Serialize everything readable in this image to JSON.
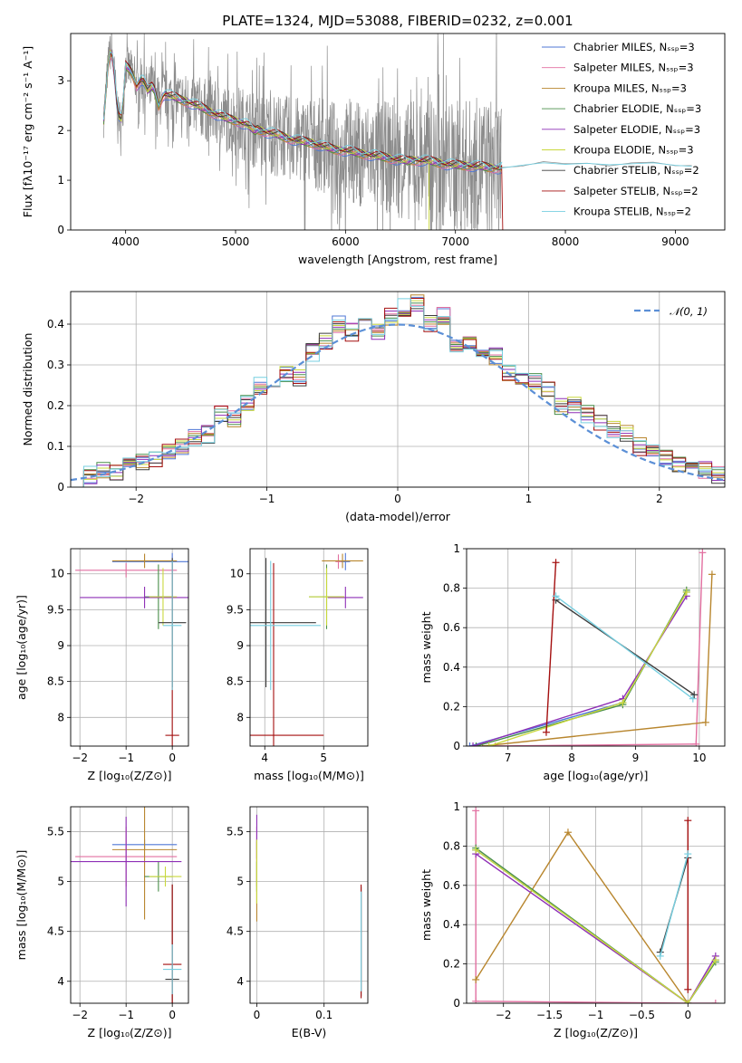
{
  "colors": {
    "series": [
      "#4f77d6",
      "#e26fa0",
      "#b8862e",
      "#4a8f4a",
      "#8e2fb6",
      "#c9d83c",
      "#3c3c3c",
      "#a40f0f",
      "#77cfe0"
    ],
    "data": "#8c8c8c",
    "gauss": "#5b8fd6",
    "grid": "#b0b0b0"
  },
  "chart_data": [
    {
      "id": "spectrum",
      "type": "line",
      "title": "PLATE=1324, MJD=53088, FIBERID=0232, z=0.001",
      "xlabel": "wavelength [Angstrom, rest frame]",
      "ylabel": "Flux [fλ10⁻¹⁷ erg cm⁻² s⁻¹ A⁻¹]",
      "xlim": [
        3500,
        9450
      ],
      "ylim": [
        0,
        3.95
      ],
      "xticks": [
        4000,
        5000,
        6000,
        7000,
        8000,
        9000
      ],
      "yticks": [
        0,
        1,
        2,
        3
      ],
      "grid": false,
      "legend": "top-right",
      "legend_entries": [
        "Chabrier MILES, Nₛₛₚ=3",
        "Salpeter MILES, Nₛₛₚ=3",
        "Kroupa MILES, Nₛₛₚ=3",
        "Chabrier ELODIE, Nₛₛₚ=3",
        "Salpeter ELODIE, Nₛₛₚ=3",
        "Kroupa ELODIE, Nₛₛₚ=3",
        "Chabrier STELIB, Nₛₛₚ=2",
        "Salpeter STELIB, Nₛₛₚ=2",
        "Kroupa STELIB, Nₛₛₚ=2"
      ],
      "model_x": [
        3800,
        3850,
        3880,
        3900,
        3930,
        3968,
        4000,
        4050,
        4100,
        4150,
        4200,
        4250,
        4300,
        4350,
        4400,
        4500,
        4600,
        4700,
        4800,
        4861,
        4900,
        5000,
        5100,
        5175,
        5200,
        5300,
        5400,
        5500,
        5600,
        5700,
        5800,
        5890,
        6000,
        6100,
        6200,
        6300,
        6400,
        6563,
        6600,
        6700,
        6800,
        6900,
        7000,
        7100,
        7200,
        7300,
        7400,
        7420
      ],
      "model_y": [
        2.2,
        3.6,
        3.5,
        3.1,
        2.3,
        2.2,
        3.3,
        3.2,
        2.9,
        3.05,
        2.8,
        2.9,
        2.5,
        2.75,
        2.7,
        2.62,
        2.55,
        2.45,
        2.35,
        2.3,
        2.25,
        2.2,
        2.12,
        1.98,
        2.02,
        1.96,
        1.9,
        1.83,
        1.78,
        1.75,
        1.68,
        1.62,
        1.6,
        1.55,
        1.52,
        1.48,
        1.45,
        1.38,
        1.4,
        1.4,
        1.37,
        1.33,
        1.3,
        1.3,
        1.28,
        1.26,
        1.24,
        1.24
      ],
      "extended_x": [
        7400,
        7600,
        7800,
        8000,
        8200,
        8400,
        8600,
        8800,
        9000,
        9150
      ],
      "extended_y": [
        1.24,
        1.3,
        1.35,
        1.32,
        1.34,
        1.31,
        1.33,
        1.35,
        1.3,
        1.28
      ]
    },
    {
      "id": "residual-histogram",
      "type": "line",
      "xlabel": "(data-model)/error",
      "ylabel": "Normed distribution",
      "xlim": [
        -2.5,
        2.5
      ],
      "ylim": [
        0,
        0.48
      ],
      "xticks": [
        -2,
        -1,
        0,
        1,
        2
      ],
      "yticks": [
        0.0,
        0.1,
        0.2,
        0.3,
        0.4
      ],
      "grid": true,
      "legend": "top-right",
      "legend_entries": [
        "𝒩(0, 1)"
      ],
      "bin_edges": [
        -2.5,
        -2.4,
        -2.3,
        -2.2,
        -2.1,
        -2.0,
        -1.9,
        -1.8,
        -1.7,
        -1.6,
        -1.5,
        -1.4,
        -1.3,
        -1.2,
        -1.1,
        -1.0,
        -0.9,
        -0.8,
        -0.7,
        -0.6,
        -0.5,
        -0.4,
        -0.3,
        -0.2,
        -0.1,
        0.0,
        0.1,
        0.2,
        0.3,
        0.4,
        0.5,
        0.6,
        0.7,
        0.8,
        0.9,
        1.0,
        1.1,
        1.2,
        1.3,
        1.4,
        1.5,
        1.6,
        1.7,
        1.8,
        1.9,
        2.0,
        2.1,
        2.2,
        2.3,
        2.4,
        2.5
      ],
      "hist_base": [
        0.02,
        0.03,
        0.04,
        0.04,
        0.05,
        0.06,
        0.07,
        0.09,
        0.1,
        0.12,
        0.13,
        0.18,
        0.17,
        0.21,
        0.25,
        0.25,
        0.28,
        0.27,
        0.33,
        0.36,
        0.4,
        0.38,
        0.42,
        0.38,
        0.42,
        0.44,
        0.45,
        0.4,
        0.42,
        0.35,
        0.36,
        0.33,
        0.32,
        0.28,
        0.26,
        0.26,
        0.24,
        0.2,
        0.2,
        0.18,
        0.16,
        0.14,
        0.13,
        0.1,
        0.09,
        0.07,
        0.06,
        0.05,
        0.04,
        0.03
      ],
      "gauss_mean": 0,
      "gauss_sigma": 1
    },
    {
      "id": "age-vs-z",
      "type": "scatter",
      "xlabel": "Z [log₁₀(Z/Z⊙)]",
      "ylabel": "age  [log₁₀(age/yr)]",
      "xlim": [
        -2.2,
        0.35
      ],
      "ylim": [
        7.6,
        10.35
      ],
      "xticks": [
        -2,
        -1,
        0
      ],
      "yticks": [
        8.0,
        8.5,
        9.0,
        9.5,
        10.0
      ],
      "grid": true,
      "points": [
        {
          "s": 0,
          "x": 0.0,
          "y": 10.17,
          "xe": 1.3,
          "ye": 0.12
        },
        {
          "s": 1,
          "x": -1.0,
          "y": 10.05,
          "xe": 1.1,
          "ye": 0.1
        },
        {
          "s": 2,
          "x": -0.6,
          "y": 10.18,
          "xe": 0.7,
          "ye": 0.1
        },
        {
          "s": 3,
          "x": -0.3,
          "y": 9.68,
          "xe": 0.3,
          "ye": 0.45
        },
        {
          "s": 4,
          "x": -0.6,
          "y": 9.67,
          "xe": 1.4,
          "ye": 0.15
        },
        {
          "s": 5,
          "x": -0.2,
          "y": 9.68,
          "xe": 0.3,
          "ye": 0.4
        },
        {
          "s": 6,
          "x": 0.0,
          "y": 9.32,
          "xe": 0.3,
          "ye": 0.9
        },
        {
          "s": 7,
          "x": 0.0,
          "y": 7.75,
          "xe": 0.15,
          "ye": 2.4
        },
        {
          "s": 8,
          "x": 0.0,
          "y": 9.28,
          "xe": 0.2,
          "ye": 0.9
        }
      ]
    },
    {
      "id": "age-vs-mass",
      "type": "scatter",
      "xlabel": "mass [log₁₀(M/M⊙)]",
      "xlim": [
        3.75,
        5.75
      ],
      "ylim": [
        7.6,
        10.35
      ],
      "xticks": [
        4,
        5
      ],
      "yticks": [
        8.0,
        8.5,
        9.0,
        9.5,
        10.0
      ],
      "grid": true,
      "points": [
        {
          "s": 0,
          "x": 5.37,
          "y": 10.17,
          "xe": 0.08,
          "ye": 0.12
        },
        {
          "s": 1,
          "x": 5.25,
          "y": 10.17,
          "xe": 0.05,
          "ye": 0.1
        },
        {
          "s": 2,
          "x": 5.32,
          "y": 10.18,
          "xe": 0.35,
          "ye": 0.1
        },
        {
          "s": 3,
          "x": 5.05,
          "y": 9.68,
          "xe": 0.3,
          "ye": 0.45
        },
        {
          "s": 4,
          "x": 5.37,
          "y": 9.67,
          "xe": 0.3,
          "ye": 0.15
        },
        {
          "s": 5,
          "x": 5.05,
          "y": 9.68,
          "xe": 0.3,
          "ye": 0.4
        },
        {
          "s": 6,
          "x": 4.02,
          "y": 9.32,
          "xe": 0.85,
          "ye": 0.9
        },
        {
          "s": 7,
          "x": 4.15,
          "y": 7.75,
          "xe": 0.85,
          "ye": 2.4
        },
        {
          "s": 8,
          "x": 4.1,
          "y": 9.28,
          "xe": 0.85,
          "ye": 0.9
        }
      ]
    },
    {
      "id": "weight-vs-age",
      "type": "line",
      "xlabel": "age  [log₁₀(age/yr)]",
      "ylabel": "mass weight",
      "xlim": [
        6.35,
        10.4
      ],
      "ylim": [
        0.0,
        1.0
      ],
      "xticks": [
        7,
        8,
        9,
        10
      ],
      "yticks": [
        0.0,
        0.2,
        0.4,
        0.6,
        0.8,
        1.0
      ],
      "grid": true,
      "series": [
        {
          "s": 0,
          "x": [
            6.4,
            8.8,
            9.8
          ],
          "y": [
            0.0,
            0.22,
            0.78
          ]
        },
        {
          "s": 1,
          "x": [
            6.8,
            9.95,
            10.05
          ],
          "y": [
            0.0,
            0.01,
            0.98
          ]
        },
        {
          "s": 2,
          "x": [
            6.6,
            10.1,
            10.2
          ],
          "y": [
            0.0,
            0.12,
            0.87
          ]
        },
        {
          "s": 3,
          "x": [
            6.5,
            8.8,
            9.8
          ],
          "y": [
            0.0,
            0.21,
            0.79
          ]
        },
        {
          "s": 4,
          "x": [
            6.45,
            8.8,
            9.8
          ],
          "y": [
            0.0,
            0.24,
            0.76
          ]
        },
        {
          "s": 5,
          "x": [
            6.7,
            8.8,
            9.8
          ],
          "y": [
            0.0,
            0.22,
            0.78
          ]
        },
        {
          "s": 6,
          "x": [
            7.75,
            9.92
          ],
          "y": [
            0.74,
            0.26
          ]
        },
        {
          "s": 7,
          "x": [
            7.6,
            7.75
          ],
          "y": [
            0.07,
            0.93
          ]
        },
        {
          "s": 8,
          "x": [
            7.75,
            9.9
          ],
          "y": [
            0.76,
            0.24
          ]
        }
      ]
    },
    {
      "id": "mass-vs-z",
      "type": "scatter",
      "xlabel": "Z [log₁₀(Z/Z⊙)]",
      "ylabel": "mass [log₁₀(M/M⊙)]",
      "xlim": [
        -2.2,
        0.35
      ],
      "ylim": [
        3.78,
        5.75
      ],
      "xticks": [
        -2,
        -1,
        0
      ],
      "yticks": [
        4.0,
        4.5,
        5.0,
        5.5
      ],
      "grid": true,
      "points": [
        {
          "s": 0,
          "x": -0.6,
          "y": 5.37,
          "xe": 0.7,
          "ye": 0.05
        },
        {
          "s": 1,
          "x": -1.0,
          "y": 5.25,
          "xe": 1.1,
          "ye": 0.3
        },
        {
          "s": 2,
          "x": -0.6,
          "y": 5.32,
          "xe": 0.7,
          "ye": 0.7
        },
        {
          "s": 3,
          "x": -0.3,
          "y": 5.05,
          "xe": 0.3,
          "ye": 0.15
        },
        {
          "s": 4,
          "x": -1.0,
          "y": 5.2,
          "xe": 1.2,
          "ye": 0.45
        },
        {
          "s": 5,
          "x": -0.15,
          "y": 5.05,
          "xe": 0.35,
          "ye": 0.1
        },
        {
          "s": 6,
          "x": 0.0,
          "y": 4.02,
          "xe": 0.15,
          "ye": 0.95
        },
        {
          "s": 7,
          "x": 0.0,
          "y": 4.17,
          "xe": 0.2,
          "ye": 0.8
        },
        {
          "s": 8,
          "x": 0.0,
          "y": 4.12,
          "xe": 0.2,
          "ye": 0.25
        }
      ]
    },
    {
      "id": "mass-vs-ebv",
      "type": "scatter",
      "xlabel": "E(B-V)",
      "xlim": [
        -0.01,
        0.165
      ],
      "ylim": [
        3.78,
        5.75
      ],
      "xticks": [
        0.0,
        0.1
      ],
      "yticks": [
        4.0,
        4.5,
        5.0,
        5.5
      ],
      "grid": true,
      "points": [
        {
          "s": 0,
          "x": 0.0,
          "y": 5.37,
          "xe": 0,
          "ye": 0.05
        },
        {
          "s": 1,
          "x": 0.0,
          "y": 5.25,
          "xe": 0,
          "ye": 0.3
        },
        {
          "s": 2,
          "x": 0.0,
          "y": 5.0,
          "xe": 0,
          "ye": 0.4
        },
        {
          "s": 3,
          "x": 0.0,
          "y": 5.05,
          "xe": 0,
          "ye": 0.15
        },
        {
          "s": 4,
          "x": 0.0,
          "y": 5.45,
          "xe": 0,
          "ye": 0.22
        },
        {
          "s": 5,
          "x": 0.0,
          "y": 5.1,
          "xe": 0,
          "ye": 0.32
        },
        {
          "s": 6,
          "x": 0.155,
          "y": 4.4,
          "xe": 0,
          "ye": 0.55
        },
        {
          "s": 7,
          "x": 0.155,
          "y": 4.4,
          "xe": 0,
          "ye": 0.57
        },
        {
          "s": 8,
          "x": 0.155,
          "y": 4.4,
          "xe": 0,
          "ye": 0.5
        }
      ]
    },
    {
      "id": "weight-vs-z",
      "type": "line",
      "xlabel": "Z [log₁₀(Z/Z⊙)]",
      "ylabel": "mass weight",
      "xlim": [
        -2.4,
        0.4
      ],
      "ylim": [
        0.0,
        1.0
      ],
      "xticks": [
        -2.0,
        -1.5,
        -1.0,
        -0.5,
        0.0
      ],
      "yticks": [
        0.0,
        0.2,
        0.4,
        0.6,
        0.8,
        1.0
      ],
      "grid": true,
      "series": [
        {
          "s": 0,
          "x": [
            -2.3,
            0.0,
            0.3
          ],
          "y": [
            0.78,
            0.0,
            0.22
          ]
        },
        {
          "s": 1,
          "x": [
            -2.3,
            -2.3,
            0.0,
            0.3
          ],
          "y": [
            0.98,
            0.01,
            0.0,
            0.0
          ]
        },
        {
          "s": 2,
          "x": [
            -2.3,
            -1.3,
            0.0
          ],
          "y": [
            0.12,
            0.87,
            0.0
          ]
        },
        {
          "s": 3,
          "x": [
            -2.3,
            0.0,
            0.3
          ],
          "y": [
            0.79,
            0.0,
            0.21
          ]
        },
        {
          "s": 4,
          "x": [
            -2.3,
            0.0,
            0.3
          ],
          "y": [
            0.76,
            0.0,
            0.24
          ]
        },
        {
          "s": 5,
          "x": [
            -2.3,
            0.0,
            0.3
          ],
          "y": [
            0.78,
            0.0,
            0.22
          ]
        },
        {
          "s": 6,
          "x": [
            -0.3,
            0.0
          ],
          "y": [
            0.26,
            0.74
          ]
        },
        {
          "s": 7,
          "x": [
            0.0,
            0.0
          ],
          "y": [
            0.07,
            0.93
          ]
        },
        {
          "s": 8,
          "x": [
            -0.3,
            0.0
          ],
          "y": [
            0.24,
            0.76
          ]
        }
      ]
    }
  ]
}
